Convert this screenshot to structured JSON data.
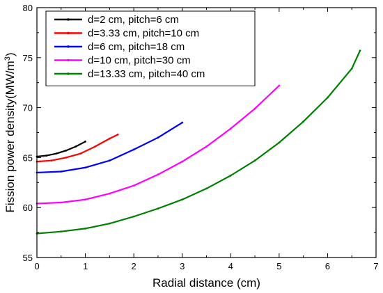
{
  "chart_data": {
    "type": "line",
    "title": "",
    "xlabel": "Radial distance (cm)",
    "ylabel_main": "Fission power density(MW/m",
    "ylabel_sup": "3",
    "ylabel_tail": ")",
    "xlim": [
      0,
      7
    ],
    "ylim": [
      55,
      80
    ],
    "xticks": [
      0,
      1,
      2,
      3,
      4,
      5,
      6,
      7
    ],
    "yticks": [
      55,
      60,
      65,
      70,
      75,
      80
    ],
    "grid": false,
    "legend_position": "top-left",
    "series": [
      {
        "name": "d=2 cm, pitch=6 cm",
        "color": "#000000",
        "x": [
          0,
          0.2,
          0.4,
          0.6,
          0.8,
          1.0
        ],
        "y": [
          65.1,
          65.2,
          65.4,
          65.7,
          66.1,
          66.6
        ]
      },
      {
        "name": "d=3.33 cm, pitch=10 cm",
        "color": "#ff0000",
        "x": [
          0,
          0.3,
          0.6,
          0.9,
          1.2,
          1.5,
          1.67
        ],
        "y": [
          64.6,
          64.7,
          65.0,
          65.4,
          66.1,
          66.9,
          67.3
        ]
      },
      {
        "name": "d=6 cm, pitch=18 cm",
        "color": "#0000ff",
        "x": [
          0,
          0.5,
          1.0,
          1.5,
          2.0,
          2.5,
          3.0
        ],
        "y": [
          63.5,
          63.6,
          64.0,
          64.7,
          65.8,
          67.0,
          68.5
        ]
      },
      {
        "name": "d=10 cm, pitch=30 cm",
        "color": "#ff00ff",
        "x": [
          0,
          0.5,
          1.0,
          1.5,
          2.0,
          2.5,
          3.0,
          3.5,
          4.0,
          4.5,
          5.0
        ],
        "y": [
          60.4,
          60.5,
          60.8,
          61.4,
          62.2,
          63.3,
          64.6,
          66.1,
          67.9,
          69.9,
          72.2
        ]
      },
      {
        "name": "d=13.33 cm, pitch=40 cm",
        "color": "#008000",
        "x": [
          0,
          0.5,
          1.0,
          1.5,
          2.0,
          2.5,
          3.0,
          3.5,
          4.0,
          4.5,
          5.0,
          5.5,
          6.0,
          6.5,
          6.67
        ],
        "y": [
          57.4,
          57.6,
          57.9,
          58.4,
          59.1,
          59.9,
          60.8,
          61.9,
          63.2,
          64.7,
          66.5,
          68.6,
          71.0,
          73.9,
          75.7
        ]
      }
    ]
  }
}
